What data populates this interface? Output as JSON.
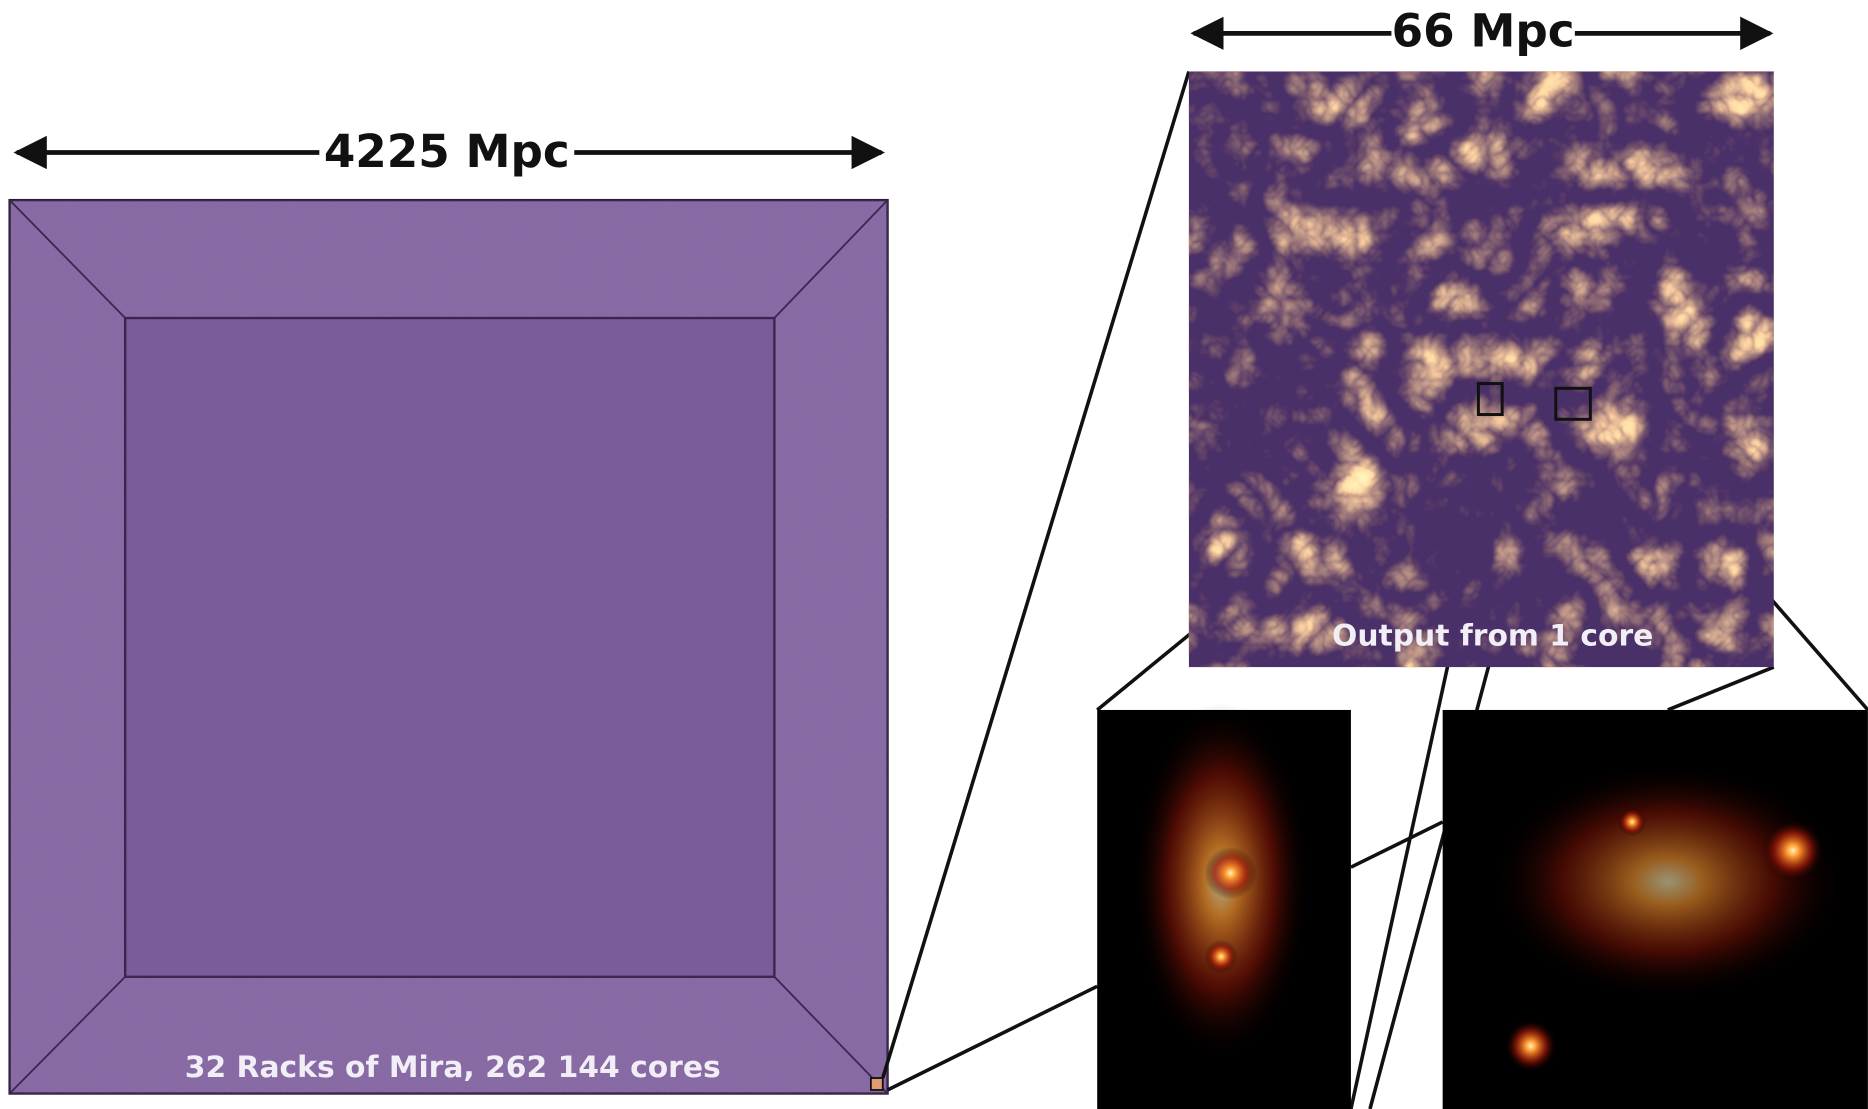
{
  "labels": {
    "left_width": "4225 Mpc",
    "right_width": "66 Mpc",
    "left_caption": "32 Racks of Mira, 262 144 cores",
    "right_caption": "Output from 1 core"
  }
}
